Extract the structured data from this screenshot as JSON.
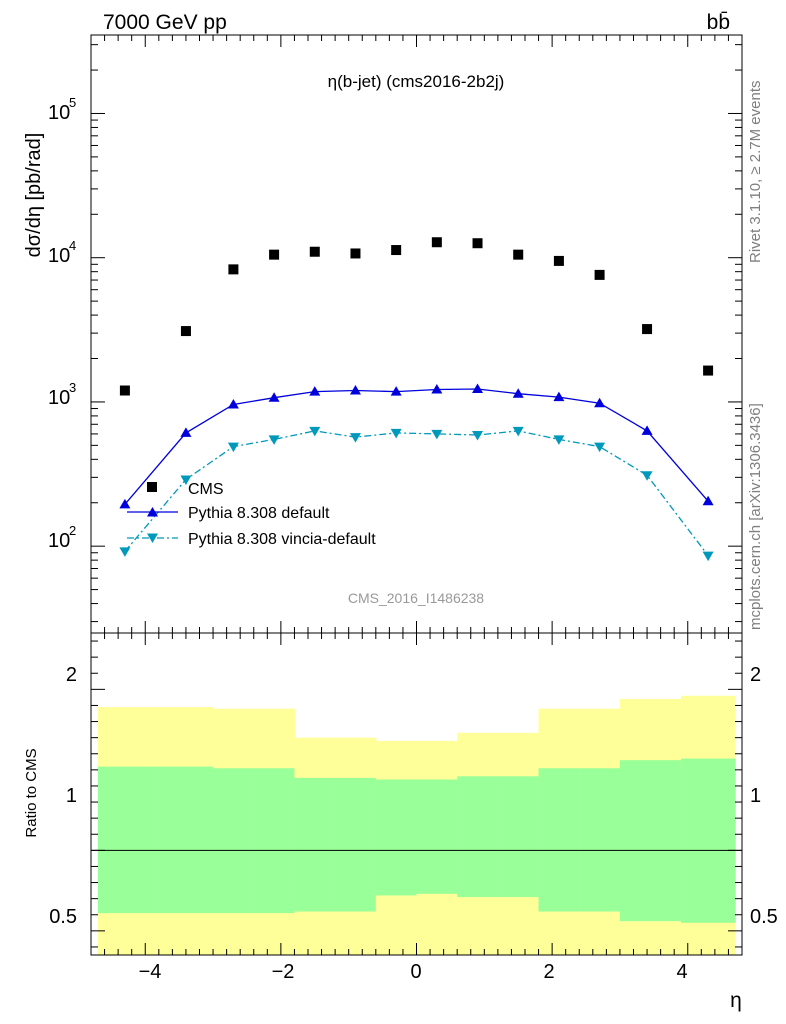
{
  "header": {
    "beam_label": "7000 GeV pp",
    "process_label": "bb̄"
  },
  "side": {
    "rivet_label": "Rivet 3.1.10, ≥ 2.7M events",
    "mcplots_label": "mcplots.cern.ch [arXiv:1306.3436]"
  },
  "main_panel": {
    "plot_title": "η(b-jet) (cms2016-2b2j)",
    "analysis_id": "CMS_2016_I1486238",
    "ylabel": "dσ/dη [pb/rad]",
    "ytick_labels": [
      "10",
      "10",
      "10",
      "10"
    ],
    "ytick_exponents": [
      "2",
      "3",
      "4",
      "5"
    ]
  },
  "ratio_panel": {
    "ylabel": "Ratio to CMS",
    "ytick_labels": [
      "0.5",
      "1",
      "2"
    ],
    "xlabel": "η",
    "xtick_labels": [
      "−4",
      "−2",
      "0",
      "2",
      "4"
    ]
  },
  "legend": {
    "cms": "CMS",
    "pythia_default": "Pythia 8.308 default",
    "pythia_vincia": "Pythia 8.308 vincia-default"
  },
  "colors": {
    "cms": "#000000",
    "pythia_default": "#0000dd",
    "pythia_vincia": "#0099bb",
    "band_inner": "#99ff99",
    "band_outer": "#ffff99"
  },
  "chart_data": [
    {
      "type": "scatter",
      "title": "η(b-jet) (cms2016-2b2j)",
      "xlabel": "η",
      "ylabel": "dσ/dη [pb/rad]",
      "yscale": "log",
      "xlim": [
        -4.8,
        4.8
      ],
      "ylim": [
        25,
        350000
      ],
      "x": [
        -4.3,
        -3.4,
        -2.7,
        -2.1,
        -1.5,
        -0.9,
        -0.3,
        0.3,
        0.9,
        1.5,
        2.1,
        2.7,
        3.4,
        4.3
      ],
      "series": [
        {
          "name": "CMS",
          "style": "markers-square",
          "values": [
            1200,
            3100,
            8300,
            10500,
            11000,
            10700,
            11300,
            12800,
            12600,
            10500,
            9500,
            7600,
            3200,
            1650
          ]
        },
        {
          "name": "Pythia 8.308 default",
          "style": "line-triangle-up",
          "values": [
            195,
            610,
            960,
            1070,
            1180,
            1200,
            1180,
            1220,
            1230,
            1140,
            1080,
            980,
            630,
            205
          ]
        },
        {
          "name": "Pythia 8.308 vincia-default",
          "style": "dashdot-triangle-down",
          "values": [
            92,
            290,
            490,
            550,
            630,
            570,
            610,
            600,
            590,
            630,
            550,
            490,
            310,
            86
          ]
        }
      ],
      "legend_position": "lower-left"
    },
    {
      "type": "area",
      "title": "",
      "xlabel": "η",
      "ylabel": "Ratio to CMS",
      "xlim": [
        -4.8,
        4.8
      ],
      "ylim": [
        0.35,
        2.35
      ],
      "ytick_values": [
        0.5,
        1,
        2
      ],
      "bin_edges": [
        -4.7,
        -3.9,
        -3.0,
        -2.4,
        -1.8,
        -1.2,
        -0.6,
        0.0,
        0.6,
        1.2,
        1.8,
        2.4,
        3.0,
        3.9,
        4.7
      ],
      "inner_band": {
        "low": [
          0.61,
          0.61,
          0.61,
          0.61,
          0.62,
          0.62,
          0.72,
          0.73,
          0.71,
          0.71,
          0.62,
          0.62,
          0.56,
          0.55
        ],
        "high": [
          1.52,
          1.52,
          1.51,
          1.51,
          1.45,
          1.45,
          1.44,
          1.44,
          1.46,
          1.46,
          1.51,
          1.51,
          1.56,
          1.57
        ]
      },
      "outer_band": {
        "low": [
          0.35,
          0.35,
          0.35,
          0.35,
          0.35,
          0.35,
          0.35,
          0.35,
          0.35,
          0.35,
          0.35,
          0.35,
          0.35,
          0.35
        ],
        "high": [
          1.89,
          1.89,
          1.88,
          1.88,
          1.7,
          1.7,
          1.68,
          1.68,
          1.73,
          1.73,
          1.88,
          1.88,
          1.94,
          1.96
        ]
      },
      "reference_line": 1
    }
  ]
}
